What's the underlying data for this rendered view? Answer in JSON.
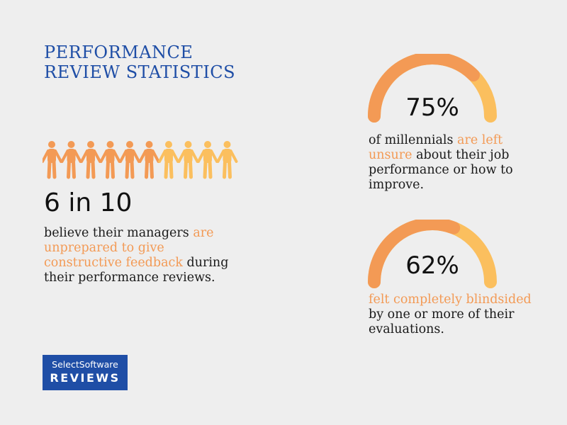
{
  "title": {
    "line1": "PERFORMANCE",
    "line2": "REVIEW STATISTICS"
  },
  "colors": {
    "title_blue": "#1f4ea6",
    "accent_orange": "#f39a55",
    "accent_yellow": "#fbbf5e",
    "background": "#eeeeee"
  },
  "left_stat": {
    "big": "6 in 10",
    "text_before": "believe their managers ",
    "highlight": "are unprepared to give constructive feedback",
    "text_after": " during their performance reviews."
  },
  "right_stats": [
    {
      "text_before": "of millennials ",
      "highlight": "are left unsure",
      "text_after": " about their job performance or how to improve."
    },
    {
      "text_before": "",
      "highlight": "felt completely blindsided",
      "text_after": " by one or more of their evaluations."
    }
  ],
  "logo": {
    "line1": "SelectSoftware",
    "line2": "REVIEWS"
  },
  "chart_data": [
    {
      "type": "pictograph",
      "icon": "person-icon",
      "total": 10,
      "highlighted": 6
    },
    {
      "type": "gauge",
      "value": 75,
      "max": 100,
      "label": "75%"
    },
    {
      "type": "gauge",
      "value": 62,
      "max": 100,
      "label": "62%"
    }
  ]
}
